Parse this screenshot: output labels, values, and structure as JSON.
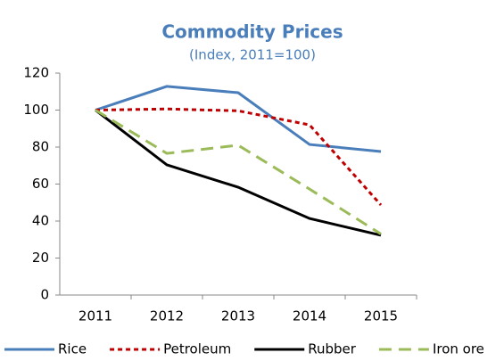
{
  "chart_data": {
    "type": "line",
    "title": "Commodity Prices",
    "subtitle": "(Index, 2011=100)",
    "categories": [
      "2011",
      "2012",
      "2013",
      "2014",
      "2015"
    ],
    "series": [
      {
        "name": "Rice",
        "color": "#4a7ebb",
        "dash": "solid",
        "values": [
          100,
          112.8,
          109.4,
          81.4,
          77.6
        ]
      },
      {
        "name": "Petroleum",
        "color": "#c00000",
        "dash": "dashed",
        "values": [
          100,
          100.6,
          99.6,
          92,
          48.7
        ]
      },
      {
        "name": "Rubber",
        "color": "#000000",
        "dash": "solid",
        "values": [
          100,
          70.4,
          58.3,
          41.4,
          32.3
        ]
      },
      {
        "name": "Iron ore",
        "color": "#9bbb59",
        "dash": "longdash",
        "values": [
          100,
          76.6,
          81,
          57.3,
          33
        ]
      }
    ],
    "ylim": [
      0,
      120
    ],
    "yticks": [
      0,
      20,
      40,
      60,
      80,
      100,
      120
    ],
    "grid": false,
    "legend": "bottom"
  }
}
